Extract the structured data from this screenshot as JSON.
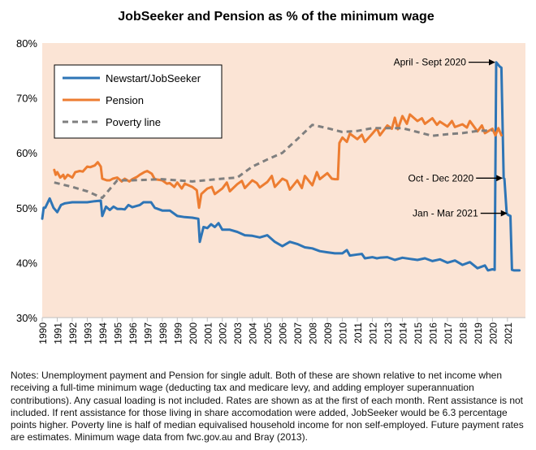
{
  "chart_data": {
    "type": "line",
    "title": "JobSeeker and Pension as % of the minimum wage",
    "xlabel": "",
    "ylabel": "",
    "xlim": [
      1990,
      2022.2
    ],
    "ylim": [
      30,
      80
    ],
    "y_ticks": [
      30,
      40,
      50,
      60,
      70,
      80
    ],
    "y_tick_labels": [
      "30%",
      "40%",
      "50%",
      "60%",
      "70%",
      "80%"
    ],
    "x_ticks": [
      1990,
      1991,
      1992,
      1993,
      1994,
      1995,
      1996,
      1997,
      1998,
      1999,
      2000,
      2001,
      2002,
      2003,
      2004,
      2005,
      2006,
      2007,
      2008,
      2009,
      2010,
      2011,
      2012,
      2013,
      2014,
      2015,
      2016,
      2017,
      2018,
      2019,
      2020,
      2021
    ],
    "x_tick_labels": [
      "1990",
      "1991",
      "1992",
      "1993",
      "1994",
      "1995",
      "1996",
      "1997",
      "1998",
      "1999",
      "2000",
      "2001",
      "2002",
      "2003",
      "2004",
      "2005",
      "2006",
      "2007",
      "2008",
      "2009",
      "2010",
      "2011",
      "2012",
      "2013",
      "2014",
      "2015",
      "2016",
      "2017",
      "2018",
      "2019",
      "2020",
      "2021"
    ],
    "plot_background": "#fbe4d5",
    "grid": false,
    "legend_position": "top-left",
    "series": [
      {
        "name": "Newstart/JobSeeker",
        "color": "#2e75b6",
        "dashed": false,
        "x": [
          1990.0,
          1990.1,
          1990.2,
          1990.5,
          1990.6,
          1990.75,
          1991.0,
          1991.25,
          1991.5,
          1991.75,
          1992.0,
          1992.3,
          1992.5,
          1993.0,
          1993.5,
          1993.9,
          1994.0,
          1994.25,
          1994.5,
          1994.75,
          1995.0,
          1995.25,
          1995.5,
          1995.75,
          1996.0,
          1996.5,
          1996.75,
          1997.0,
          1997.25,
          1997.5,
          1998.0,
          1998.5,
          1999.0,
          1999.5,
          2000.0,
          2000.4,
          2000.5,
          2000.75,
          2001.0,
          2001.25,
          2001.5,
          2001.75,
          2002.0,
          2002.5,
          2003.0,
          2003.5,
          2004.0,
          2004.5,
          2005.0,
          2005.5,
          2006.0,
          2006.5,
          2007.0,
          2007.5,
          2008.0,
          2008.5,
          2009.0,
          2009.5,
          2010.0,
          2010.3,
          2010.5,
          2011.0,
          2011.3,
          2011.5,
          2012.0,
          2012.3,
          2012.5,
          2013.0,
          2013.5,
          2014.0,
          2014.5,
          2015.0,
          2015.5,
          2016.0,
          2016.5,
          2017.0,
          2017.5,
          2018.0,
          2018.5,
          2019.0,
          2019.5,
          2019.7,
          2020.0,
          2020.15,
          2020.25,
          2020.4,
          2020.5,
          2020.6,
          2020.75,
          2020.8,
          2020.95,
          2021.05,
          2021.2,
          2021.3,
          2021.45,
          2021.5,
          2021.8
        ],
        "values": [
          48,
          50,
          50,
          51.7,
          51,
          50,
          49.2,
          50.5,
          50.8,
          50.9,
          51,
          51,
          51,
          51,
          51.2,
          51.3,
          48.5,
          50.2,
          49.6,
          50.2,
          49.8,
          49.8,
          49.7,
          50.5,
          50.1,
          50.5,
          51,
          51,
          51,
          50,
          49.5,
          49.5,
          48.5,
          48.3,
          48.2,
          48.0,
          43.8,
          46.5,
          46.3,
          47,
          46.5,
          47.2,
          46,
          46,
          45.6,
          45,
          44.9,
          44.6,
          45,
          43.8,
          43.0,
          43.8,
          43.4,
          42.8,
          42.6,
          42.1,
          41.9,
          41.7,
          41.7,
          42.3,
          41.3,
          41.5,
          41.6,
          40.8,
          41.0,
          40.8,
          40.9,
          41.0,
          40.5,
          40.9,
          40.7,
          40.5,
          40.8,
          40.3,
          40.6,
          40.0,
          40.4,
          39.6,
          40.1,
          39.0,
          39.5,
          38.6,
          38.8,
          38.7,
          76.5,
          76,
          75.7,
          75.5,
          55.4,
          55.3,
          49,
          48.7,
          48.5,
          38.7,
          38.6,
          38.6,
          38.6
        ]
      },
      {
        "name": "Pension",
        "color": "#ed7d31",
        "dashed": false,
        "x": [
          1990.8,
          1990.9,
          1991.0,
          1991.2,
          1991.4,
          1991.5,
          1991.7,
          1992.0,
          1992.2,
          1992.5,
          1992.7,
          1993.0,
          1993.2,
          1993.5,
          1993.7,
          1993.9,
          1994.0,
          1994.3,
          1994.5,
          1994.7,
          1995.0,
          1995.3,
          1995.5,
          1995.8,
          1996.0,
          1996.3,
          1996.5,
          1996.8,
          1997.0,
          1997.3,
          1997.5,
          1998.0,
          1998.3,
          1998.5,
          1998.8,
          1999.0,
          1999.3,
          1999.5,
          2000.0,
          2000.3,
          2000.45,
          2000.6,
          2001.0,
          2001.3,
          2001.5,
          2002.0,
          2002.3,
          2002.5,
          2003.0,
          2003.3,
          2003.5,
          2004.0,
          2004.3,
          2004.5,
          2005.0,
          2005.3,
          2005.5,
          2006.0,
          2006.3,
          2006.5,
          2007.0,
          2007.3,
          2007.5,
          2008.0,
          2008.3,
          2008.5,
          2009.0,
          2009.3,
          2009.5,
          2009.7,
          2009.8,
          2010.0,
          2010.3,
          2010.5,
          2011.0,
          2011.3,
          2011.5,
          2012.0,
          2012.3,
          2012.5,
          2013.0,
          2013.3,
          2013.5,
          2013.7,
          2014.0,
          2014.3,
          2014.5,
          2015.0,
          2015.3,
          2015.5,
          2016.0,
          2016.3,
          2016.5,
          2017.0,
          2017.3,
          2017.5,
          2018.0,
          2018.3,
          2018.5,
          2019.0,
          2019.3,
          2019.5,
          2020.0,
          2020.2,
          2020.4,
          2020.6
        ],
        "values": [
          56.9,
          56,
          56.5,
          55.5,
          56,
          55.3,
          56,
          55.5,
          56.5,
          56.7,
          56.6,
          57.5,
          57.4,
          57.7,
          58.3,
          57.5,
          55.3,
          55,
          55,
          55.3,
          55.5,
          54.8,
          55.3,
          54.8,
          55.2,
          55.6,
          56,
          56.5,
          56.7,
          56.2,
          55.2,
          55,
          54.4,
          54.5,
          53.8,
          54.6,
          53.5,
          54.4,
          53.8,
          53.2,
          50,
          52.5,
          53.5,
          53.8,
          52.5,
          53.5,
          54.6,
          53,
          54.3,
          54.9,
          53.6,
          55,
          54.5,
          53.7,
          54.7,
          55.8,
          53.8,
          55.3,
          54.9,
          53.3,
          55,
          53.6,
          55.8,
          54.1,
          56.5,
          55.2,
          56.3,
          55.3,
          55.2,
          55.2,
          61.8,
          62.8,
          62,
          63.5,
          62.5,
          63.3,
          62,
          63.5,
          64.5,
          63.2,
          65,
          64.4,
          66.4,
          64.3,
          66.7,
          65.3,
          67,
          65.8,
          66.3,
          65.3,
          66.3,
          65.1,
          65.7,
          64.8,
          65.8,
          64.7,
          65.2,
          64.6,
          65.8,
          63.9,
          65,
          63.6,
          64.4,
          63.2,
          64.5,
          63.2
        ]
      },
      {
        "name": "Poverty line",
        "color": "#7f7f7f",
        "dashed": true,
        "x": [
          1990.8,
          1992.0,
          1993.0,
          1994.0,
          1995.0,
          1996.0,
          1998.0,
          2000.0,
          2002.0,
          2003.0,
          2004.0,
          2005.0,
          2006.0,
          2007.0,
          2008.0,
          2009.0,
          2010.0,
          2011.0,
          2012.0,
          2013.0,
          2014.0,
          2015.0,
          2016.0,
          2017.0,
          2018.0,
          2019.0,
          2020.0
        ],
        "values": [
          54.6,
          53.8,
          53,
          51.8,
          55,
          55,
          55.2,
          54.8,
          55.3,
          55.5,
          57.5,
          58.8,
          60,
          62.5,
          65.1,
          64.5,
          63.8,
          64,
          64.5,
          64.5,
          64.5,
          63.8,
          63.1,
          63.4,
          63.6,
          64,
          64.1
        ]
      }
    ],
    "annotations": [
      {
        "text": "April - Sept 2020",
        "x": 2020.25,
        "y": 76.5
      },
      {
        "text": "Oct - Dec 2020",
        "x": 2020.75,
        "y": 55.4
      },
      {
        "text": "Jan - Mar 2021",
        "x": 2021.05,
        "y": 49
      }
    ]
  },
  "notes": "Notes: Unemployment payment and Pension for single adult. Both of these are shown relative to net income when receiving a full-time minimum wage (deducting tax and medicare levy, and adding employer superannuation contributions). Any casual loading is not included. Rates are shown as at the first of each month. Rent assistance is not included. If rent assistance for those living in share accomodation were added, JobSeeker would be 6.3 percentage points higher. Poverty line is half of median equivalised household income for non self-employed. Future payment rates are estimates. Minimum wage data from fwc.gov.au and Bray (2013)."
}
